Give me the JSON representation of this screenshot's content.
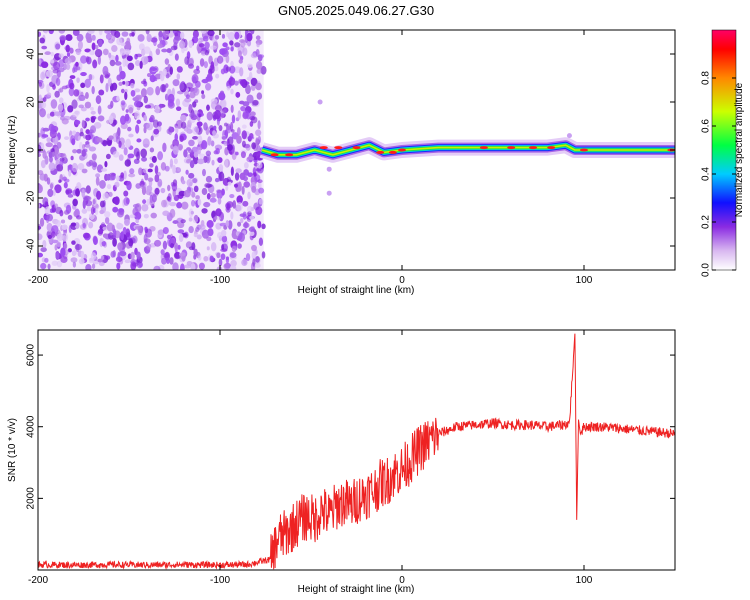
{
  "title": "GN05.2025.049.06.27.G30",
  "chart_data": [
    {
      "type": "heatmap",
      "name": "spectrogram",
      "xlabel": "Height of straight line (km)",
      "ylabel": "Frequency (Hz)",
      "xlim": [
        -200,
        150
      ],
      "ylim": [
        -50,
        50
      ],
      "xticks": [
        -200,
        -100,
        0,
        100
      ],
      "yticks": [
        -40,
        -20,
        0,
        20,
        40
      ],
      "noise_region_x": [
        -200,
        -76
      ],
      "signal_track": [
        {
          "x": -77,
          "f": 0
        },
        {
          "x": -68,
          "f": -2
        },
        {
          "x": -58,
          "f": -2
        },
        {
          "x": -48,
          "f": 0
        },
        {
          "x": -38,
          "f": -2
        },
        {
          "x": -28,
          "f": 0
        },
        {
          "x": -18,
          "f": 2
        },
        {
          "x": -10,
          "f": -1
        },
        {
          "x": 0,
          "f": 0
        },
        {
          "x": 20,
          "f": 1
        },
        {
          "x": 50,
          "f": 1
        },
        {
          "x": 80,
          "f": 1
        },
        {
          "x": 90,
          "f": 2
        },
        {
          "x": 95,
          "f": 0
        },
        {
          "x": 110,
          "f": 0
        },
        {
          "x": 150,
          "f": 0
        }
      ],
      "colorbar": {
        "label": "Normalized spectral amplitude",
        "ticks": [
          0.0,
          0.2,
          0.4,
          0.6,
          0.8
        ],
        "tick_labels": [
          "0.0",
          "0.2",
          "0.4",
          "0.6",
          "0.8"
        ],
        "range": [
          0,
          1
        ]
      }
    },
    {
      "type": "line",
      "name": "snr",
      "xlabel": "Height of straight line (km)",
      "ylabel": "SNR (10 * v/v)",
      "xlim": [
        -200,
        150
      ],
      "ylim": [
        0,
        6700
      ],
      "xticks": [
        -200,
        -100,
        0,
        100
      ],
      "yticks": [
        2000,
        4000,
        6000
      ],
      "color": "#ee2222",
      "series": [
        {
          "name": "SNR",
          "x": [
            -200,
            -180,
            -160,
            -140,
            -120,
            -100,
            -85,
            -72,
            -68,
            -64,
            -60,
            -56,
            -52,
            -48,
            -44,
            -40,
            -36,
            -32,
            -28,
            -24,
            -20,
            -16,
            -12,
            -8,
            -4,
            0,
            5,
            10,
            15,
            20,
            25,
            30,
            40,
            50,
            60,
            70,
            80,
            88,
            92,
            95,
            96,
            97,
            98,
            100,
            110,
            120,
            130,
            140,
            150
          ],
          "y": [
            150,
            140,
            150,
            140,
            150,
            140,
            150,
            300,
            900,
            1000,
            1200,
            1400,
            1500,
            1400,
            1700,
            1500,
            1800,
            1900,
            1800,
            2000,
            2100,
            2200,
            2400,
            2500,
            2700,
            2800,
            3100,
            3400,
            3600,
            3800,
            3900,
            4000,
            4050,
            4100,
            4050,
            4050,
            4000,
            4050,
            4100,
            6600,
            1400,
            4200,
            3800,
            4000,
            4000,
            3950,
            3900,
            3850,
            3800
          ]
        }
      ]
    }
  ]
}
